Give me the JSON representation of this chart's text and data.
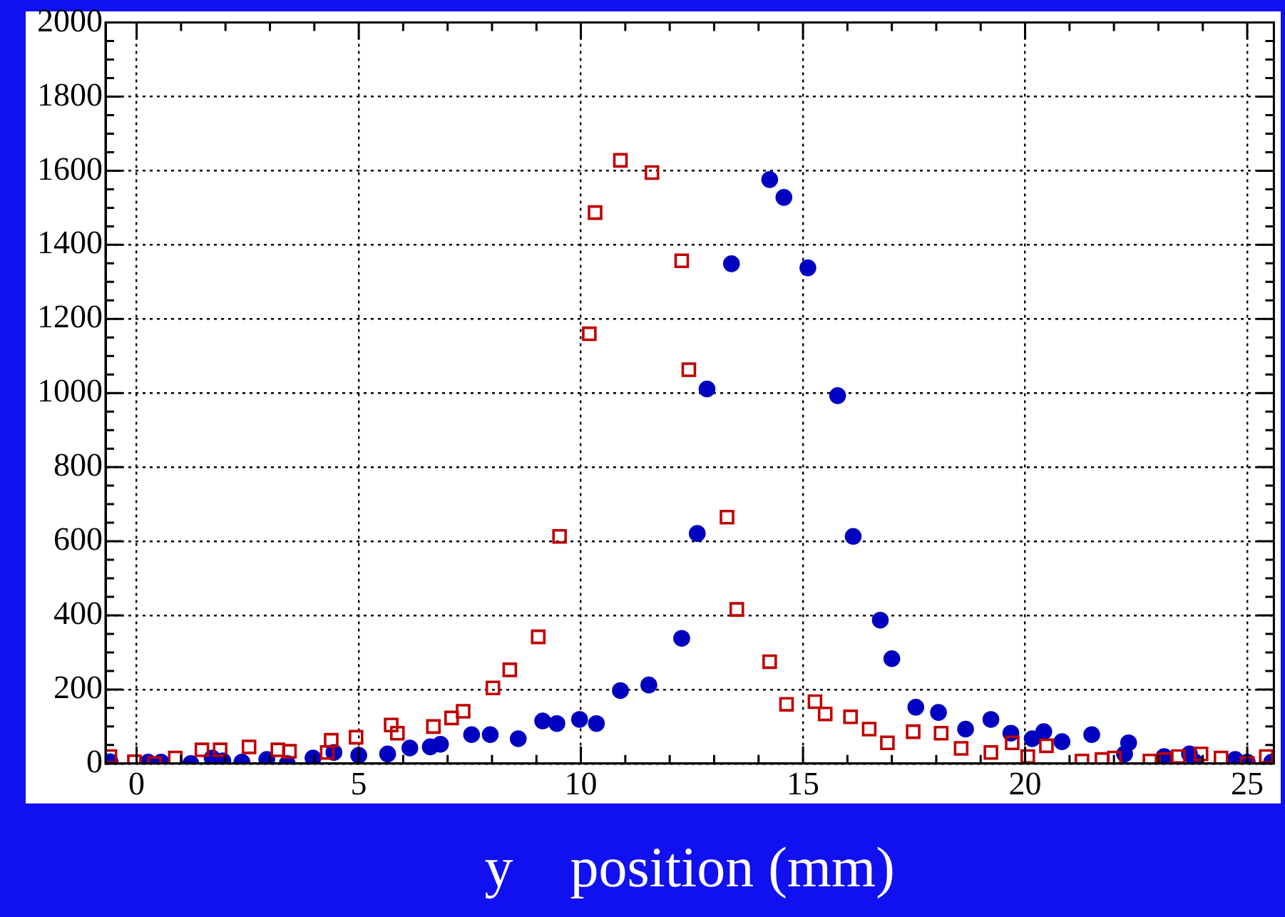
{
  "chart_data": {
    "type": "scatter",
    "xlabel": "y    position (mm)",
    "xlim": [
      -0.7,
      25.6
    ],
    "ylim": [
      0,
      2000
    ],
    "xticks": [
      0,
      {
        "value": 1,
        "label": null
      },
      {
        "value": 2,
        "label": null
      },
      {
        "value": 3,
        "label": null
      },
      {
        "value": 4,
        "label": null
      },
      5,
      {
        "value": 6,
        "label": null
      },
      {
        "value": 7,
        "label": null
      },
      {
        "value": 8,
        "label": null
      },
      {
        "value": 9,
        "label": null
      },
      10,
      {
        "value": 11,
        "label": null
      },
      {
        "value": 12,
        "label": null
      },
      {
        "value": 13,
        "label": null
      },
      {
        "value": 14,
        "label": null
      },
      15,
      {
        "value": 16,
        "label": null
      },
      {
        "value": 17,
        "label": null
      },
      {
        "value": 18,
        "label": null
      },
      {
        "value": 19,
        "label": null
      },
      20,
      {
        "value": 21,
        "label": null
      },
      {
        "value": 22,
        "label": null
      },
      {
        "value": 23,
        "label": null
      },
      {
        "value": 24,
        "label": null
      },
      25
    ],
    "yticks": [
      0,
      {
        "value": 50,
        "label": null
      },
      {
        "value": 100,
        "label": null
      },
      {
        "value": 150,
        "label": null
      },
      200,
      {
        "value": 250,
        "label": null
      },
      {
        "value": 300,
        "label": null
      },
      {
        "value": 350,
        "label": null
      },
      400,
      {
        "value": 450,
        "label": null
      },
      {
        "value": 500,
        "label": null
      },
      {
        "value": 550,
        "label": null
      },
      600,
      {
        "value": 650,
        "label": null
      },
      {
        "value": 700,
        "label": null
      },
      {
        "value": 750,
        "label": null
      },
      800,
      {
        "value": 850,
        "label": null
      },
      {
        "value": 900,
        "label": null
      },
      {
        "value": 950,
        "label": null
      },
      1000,
      {
        "value": 1050,
        "label": null
      },
      {
        "value": 1100,
        "label": null
      },
      {
        "value": 1150,
        "label": null
      },
      1200,
      {
        "value": 1250,
        "label": null
      },
      {
        "value": 1300,
        "label": null
      },
      {
        "value": 1350,
        "label": null
      },
      1400,
      {
        "value": 1450,
        "label": null
      },
      {
        "value": 1500,
        "label": null
      },
      {
        "value": 1550,
        "label": null
      },
      1600,
      {
        "value": 1650,
        "label": null
      },
      {
        "value": 1700,
        "label": null
      },
      {
        "value": 1750,
        "label": null
      },
      1800,
      {
        "value": 1850,
        "label": null
      },
      {
        "value": 1900,
        "label": null
      },
      {
        "value": 1950,
        "label": null
      },
      2000
    ],
    "grid": true,
    "series": [
      {
        "color": "#c00000",
        "marker": "square",
        "x": [
          -0.6,
          -0.05,
          0.4,
          0.87,
          1.47,
          1.88,
          2.53,
          3.18,
          3.44,
          4.29,
          4.38,
          4.94,
          5.73,
          5.87,
          6.68,
          7.09,
          7.35,
          8.02,
          8.4,
          9.04,
          9.52,
          10.19,
          10.32,
          10.89,
          11.6,
          12.27,
          12.43,
          13.29,
          13.51,
          14.25,
          14.63,
          15.27,
          15.5,
          16.07,
          16.49,
          16.9,
          17.48,
          18.11,
          18.56,
          19.23,
          19.71,
          20.06,
          20.48,
          21.28,
          21.73,
          22.01,
          22.81,
          23.16,
          23.45,
          23.96,
          24.41,
          25.0,
          25.43
        ],
        "values": [
          19,
          5,
          0,
          15,
          37,
          37,
          45,
          37,
          33,
          30,
          63,
          71,
          104,
          82,
          100,
          123,
          141,
          204,
          253,
          342,
          613,
          1160,
          1487,
          1628,
          1595,
          1357,
          1063,
          665,
          416,
          275,
          160,
          167,
          134,
          126,
          93,
          56,
          86,
          82,
          41,
          30,
          56,
          19,
          48,
          7,
          11,
          15,
          7,
          11,
          19,
          26,
          15,
          0,
          19
        ]
      },
      {
        "color": "#0000c0",
        "marker": "circle",
        "x": [
          -0.6,
          0.26,
          0.55,
          1.22,
          1.7,
          1.94,
          2.37,
          2.93,
          3.39,
          3.97,
          4.44,
          5.0,
          5.65,
          6.15,
          6.61,
          6.84,
          7.54,
          7.96,
          8.59,
          9.14,
          9.46,
          9.97,
          10.35,
          10.89,
          11.53,
          12.27,
          12.62,
          12.84,
          13.39,
          14.25,
          14.57,
          15.11,
          15.78,
          16.13,
          16.74,
          17.0,
          17.54,
          18.05,
          18.66,
          19.23,
          19.68,
          20.16,
          20.42,
          20.83,
          21.5,
          22.24,
          22.33,
          23.13,
          23.7,
          23.83,
          24.73,
          25.0,
          25.55
        ],
        "values": [
          5,
          4,
          4,
          0,
          15,
          7,
          4,
          11,
          0,
          15,
          30,
          22,
          26,
          42,
          45,
          52,
          78,
          78,
          67,
          115,
          108,
          119,
          108,
          197,
          212,
          338,
          621,
          1011,
          1349,
          1576,
          1528,
          1338,
          993,
          613,
          387,
          283,
          152,
          138,
          93,
          119,
          82,
          67,
          86,
          59,
          78,
          26,
          56,
          19,
          26,
          4,
          11,
          4,
          4
        ]
      }
    ]
  }
}
